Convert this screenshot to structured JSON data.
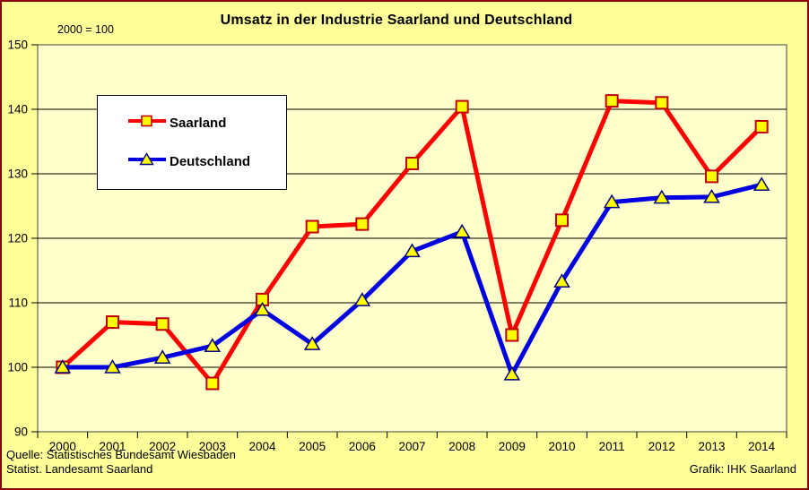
{
  "frame": {
    "bg_color": "#FFFF99",
    "border_color": "#8B0000"
  },
  "header": {
    "title": "Umsatz in der Industrie Saarland und Deutschland",
    "index_note": "2000 = 100"
  },
  "legend": {
    "items": [
      {
        "label": "Saarland"
      },
      {
        "label": "Deutschland"
      }
    ]
  },
  "footer": {
    "source_line1": "Quelle: Statistisches Bundesamt Wiesbaden",
    "source_line2": "Statist. Landesamt Saarland",
    "credit": "Grafik: IHK Saarland"
  },
  "chart_data": {
    "type": "line",
    "title": "Umsatz in der Industrie Saarland und Deutschland",
    "subtitle": "2000 = 100",
    "xlabel": "",
    "ylabel": "",
    "categories": [
      "2000",
      "2001",
      "2002",
      "2003",
      "2004",
      "2005",
      "2006",
      "2007",
      "2008",
      "2009",
      "2010",
      "2011",
      "2012",
      "2013",
      "2014"
    ],
    "series": [
      {
        "name": "Saarland",
        "color": "#FF0000",
        "marker": "square",
        "marker_fill": "#FFFF00",
        "marker_stroke": "#C00000",
        "values": [
          100,
          107,
          106.7,
          97.5,
          110.5,
          121.8,
          122.2,
          131.6,
          140.4,
          105,
          122.8,
          141.3,
          141,
          129.6,
          137.3
        ]
      },
      {
        "name": "Deutschland",
        "color": "#0000E0",
        "marker": "triangle",
        "marker_fill": "#FFFF00",
        "marker_stroke": "#000080",
        "values": [
          100,
          100,
          101.5,
          103.3,
          108.9,
          103.6,
          110.4,
          118,
          121,
          98.9,
          113.3,
          125.6,
          126.3,
          126.4,
          128.3
        ]
      }
    ],
    "ylim": [
      90,
      150
    ],
    "ytick_step": 10,
    "grid": true,
    "plot_bg": "#FFFFCC",
    "gridline_color": "#000000",
    "legend_position": "upper-left-inside"
  }
}
